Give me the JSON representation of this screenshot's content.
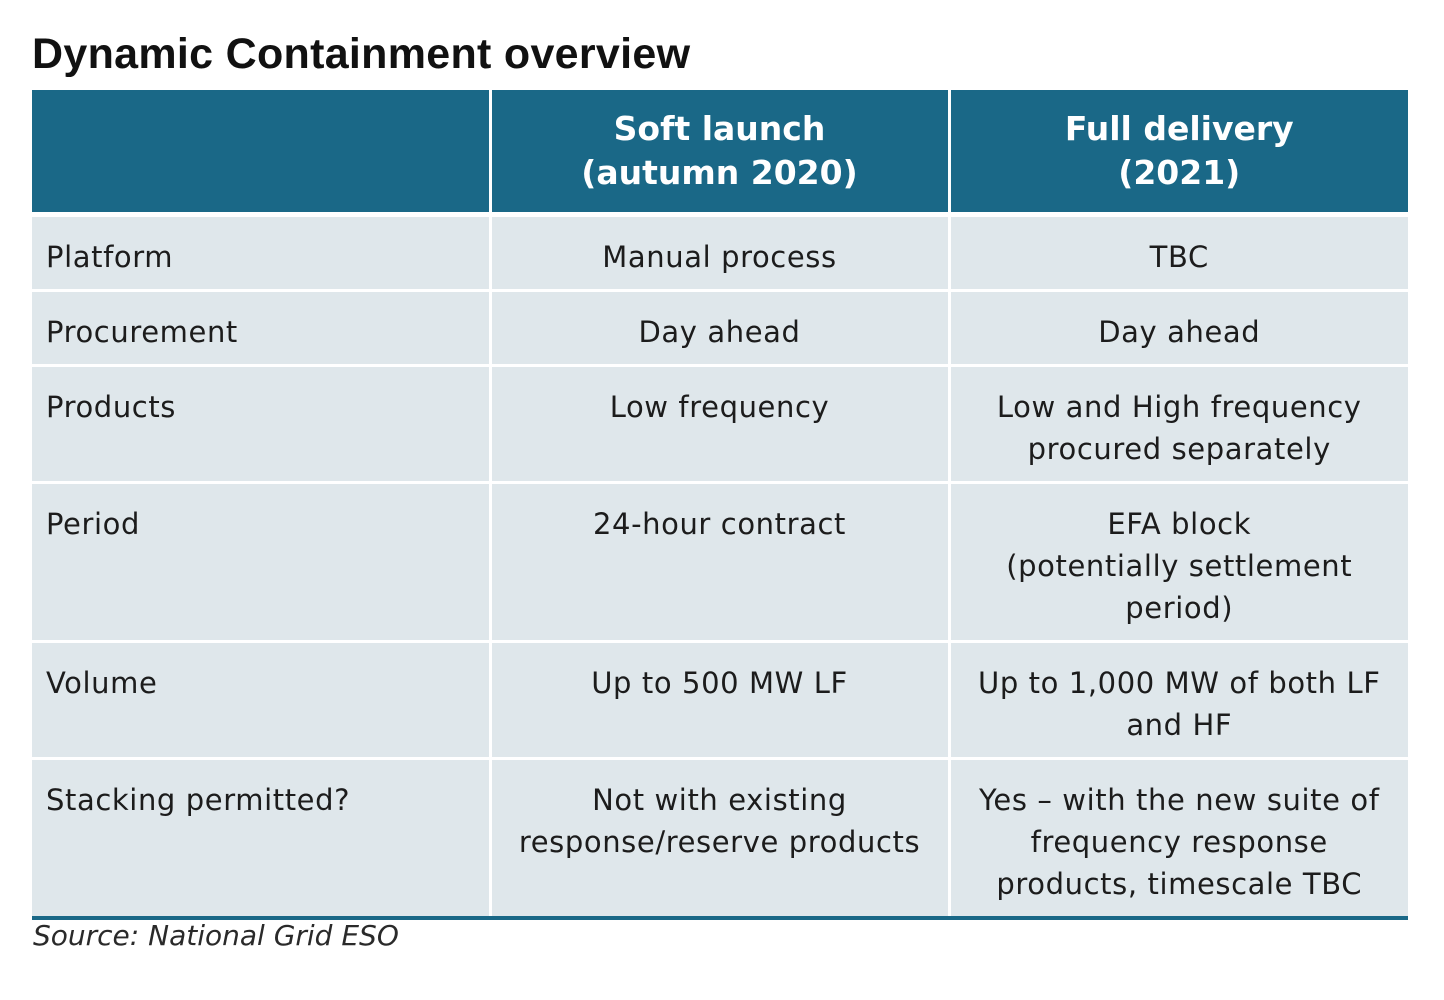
{
  "title": "Dynamic Containment overview",
  "table": {
    "headers": [
      {
        "lines": [
          ""
        ]
      },
      {
        "lines": [
          "Soft launch",
          "(autumn 2020)"
        ]
      },
      {
        "lines": [
          "Full delivery",
          "(2021)"
        ]
      }
    ],
    "rows": [
      {
        "label": "Platform",
        "soft": [
          "Manual process"
        ],
        "full": [
          "TBC"
        ]
      },
      {
        "label": "Procurement",
        "soft": [
          "Day ahead"
        ],
        "full": [
          "Day ahead"
        ]
      },
      {
        "label": "Products",
        "soft": [
          "Low frequency"
        ],
        "full": [
          "Low and High frequency",
          "procured separately"
        ]
      },
      {
        "label": "Period",
        "soft": [
          "24-hour contract"
        ],
        "full": [
          "EFA block",
          "(potentially settlement",
          "period)"
        ]
      },
      {
        "label": "Volume",
        "soft": [
          "Up to 500 MW LF"
        ],
        "full": [
          "Up to 1,000 MW of both LF",
          "and HF"
        ]
      },
      {
        "label": "Stacking permitted?",
        "soft": [
          "Not with existing",
          "response/reserve products"
        ],
        "full": [
          "Yes – with the new suite of",
          "frequency response",
          "products, timescale TBC"
        ]
      }
    ]
  },
  "source": "Source: National Grid ESO",
  "colors": {
    "header_bg": "#1a6887",
    "row_bg": "#dfe7eb"
  }
}
